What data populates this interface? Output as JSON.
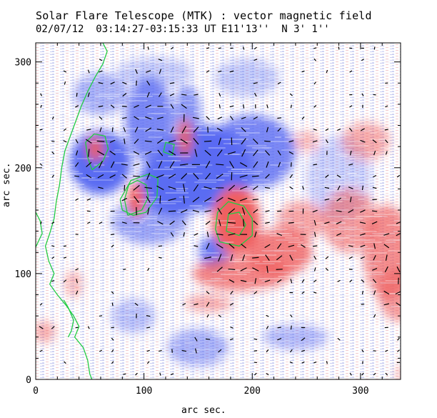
{
  "chart_data": {
    "type": "heatmap",
    "title": "Solar Flare Telescope (MTK) : vector magnetic field",
    "subtitle": {
      "date_time": "02/07/12  03:14:27-03:15:33 UT",
      "position": "E11'13''  N 3' 1''"
    },
    "xlabel": "arc sec.",
    "ylabel": "arc sec.",
    "xlim": [
      0,
      337
    ],
    "ylim": [
      0,
      318
    ],
    "xticks": [
      0,
      100,
      200,
      300
    ],
    "yticks": [
      0,
      100,
      200,
      300
    ],
    "colors": {
      "positive": "#f06060",
      "negative": "#5a6cf2",
      "contour": "#22cc44",
      "vectors": "#000000"
    },
    "series": [
      {
        "name": "negative polarity (blue)",
        "regions": [
          {
            "x": 60,
            "y": 205,
            "rx": 28,
            "ry": 30,
            "v": -1
          },
          {
            "x": 105,
            "y": 245,
            "rx": 22,
            "ry": 40,
            "v": -0.8
          },
          {
            "x": 140,
            "y": 250,
            "rx": 12,
            "ry": 28,
            "v": -0.7
          },
          {
            "x": 155,
            "y": 200,
            "rx": 45,
            "ry": 40,
            "v": -1
          },
          {
            "x": 130,
            "y": 185,
            "rx": 35,
            "ry": 30,
            "v": -1
          },
          {
            "x": 200,
            "y": 215,
            "rx": 40,
            "ry": 35,
            "v": -0.8
          },
          {
            "x": 105,
            "y": 150,
            "rx": 35,
            "ry": 22,
            "v": -0.6
          },
          {
            "x": 165,
            "y": 120,
            "rx": 14,
            "ry": 16,
            "v": -0.9
          },
          {
            "x": 110,
            "y": 290,
            "rx": 35,
            "ry": 14,
            "v": -0.35
          },
          {
            "x": 280,
            "y": 190,
            "rx": 30,
            "ry": 40,
            "v": -0.3
          },
          {
            "x": 240,
            "y": 40,
            "rx": 30,
            "ry": 12,
            "v": -0.45
          },
          {
            "x": 150,
            "y": 30,
            "rx": 28,
            "ry": 18,
            "v": -0.5
          },
          {
            "x": 90,
            "y": 60,
            "rx": 20,
            "ry": 16,
            "v": -0.4
          },
          {
            "x": 60,
            "y": 270,
            "rx": 25,
            "ry": 20,
            "v": -0.5
          },
          {
            "x": 195,
            "y": 285,
            "rx": 30,
            "ry": 18,
            "v": -0.35
          }
        ]
      },
      {
        "name": "positive polarity (red)",
        "regions": [
          {
            "x": 185,
            "y": 150,
            "rx": 22,
            "ry": 32,
            "v": 1
          },
          {
            "x": 225,
            "y": 120,
            "rx": 30,
            "ry": 22,
            "v": 0.8
          },
          {
            "x": 190,
            "y": 100,
            "rx": 45,
            "ry": 16,
            "v": 0.75
          },
          {
            "x": 245,
            "y": 150,
            "rx": 22,
            "ry": 18,
            "v": 0.55
          },
          {
            "x": 290,
            "y": 150,
            "rx": 25,
            "ry": 30,
            "v": 0.6
          },
          {
            "x": 305,
            "y": 225,
            "rx": 22,
            "ry": 18,
            "v": 0.5
          },
          {
            "x": 325,
            "y": 120,
            "rx": 22,
            "ry": 45,
            "v": 0.7
          },
          {
            "x": 335,
            "y": 80,
            "rx": 18,
            "ry": 25,
            "v": 0.6
          },
          {
            "x": 55,
            "y": 218,
            "rx": 8,
            "ry": 12,
            "v": 0.9
          },
          {
            "x": 93,
            "y": 170,
            "rx": 8,
            "ry": 16,
            "v": 0.95
          },
          {
            "x": 138,
            "y": 228,
            "rx": 7,
            "ry": 18,
            "v": 0.85
          },
          {
            "x": 160,
            "y": 72,
            "rx": 22,
            "ry": 8,
            "v": 0.5
          },
          {
            "x": 250,
            "y": 225,
            "rx": 12,
            "ry": 10,
            "v": 0.4
          },
          {
            "x": 8,
            "y": 45,
            "rx": 10,
            "ry": 10,
            "v": 0.5
          },
          {
            "x": 35,
            "y": 90,
            "rx": 8,
            "ry": 12,
            "v": 0.45
          },
          {
            "x": 340,
            "y": 5,
            "rx": 8,
            "ry": 8,
            "v": 0.4
          }
        ]
      },
      {
        "name": "contours (green)",
        "lines": [
          [
            [
              62,
              318
            ],
            [
              66,
              310
            ],
            [
              62,
              298
            ],
            [
              55,
              286
            ],
            [
              48,
              272
            ],
            [
              42,
              258
            ],
            [
              37,
              244
            ],
            [
              32,
              230
            ],
            [
              27,
              216
            ],
            [
              24,
              200
            ],
            [
              22,
              184
            ],
            [
              19,
              168
            ],
            [
              17,
              152
            ],
            [
              13,
              138
            ],
            [
              9,
              126
            ],
            [
              12,
              112
            ],
            [
              17,
              100
            ],
            [
              13,
              90
            ],
            [
              20,
              80
            ],
            [
              28,
              70
            ],
            [
              35,
              60
            ],
            [
              40,
              50
            ],
            [
              36,
              40
            ],
            [
              44,
              30
            ],
            [
              48,
              18
            ],
            [
              50,
              5
            ],
            [
              52,
              0
            ]
          ],
          [
            [
              52,
              198
            ],
            [
              62,
              206
            ],
            [
              67,
              218
            ],
            [
              64,
              230
            ],
            [
              54,
              232
            ],
            [
              46,
              224
            ],
            [
              48,
              210
            ],
            [
              52,
              198
            ]
          ],
          [
            [
              85,
              155
            ],
            [
              98,
              160
            ],
            [
              104,
              172
            ],
            [
              102,
              184
            ],
            [
              94,
              188
            ],
            [
              86,
              184
            ],
            [
              82,
              170
            ],
            [
              85,
              155
            ]
          ],
          [
            [
              78,
              170
            ],
            [
              88,
              188
            ],
            [
              104,
              194
            ],
            [
              113,
              190
            ],
            [
              112,
              172
            ],
            [
              102,
              158
            ],
            [
              90,
              155
            ],
            [
              80,
              160
            ],
            [
              78,
              170
            ]
          ],
          [
            [
              170,
              130
            ],
            [
              188,
              126
            ],
            [
              200,
              136
            ],
            [
              200,
              152
            ],
            [
              192,
              164
            ],
            [
              178,
              168
            ],
            [
              168,
              158
            ],
            [
              166,
              142
            ],
            [
              170,
              130
            ]
          ],
          [
            [
              176,
              140
            ],
            [
              188,
              136
            ],
            [
              194,
              146
            ],
            [
              188,
              158
            ],
            [
              178,
              156
            ],
            [
              176,
              140
            ]
          ],
          [
            [
              118,
              215
            ],
            [
              126,
              212
            ],
            [
              128,
              222
            ],
            [
              120,
              224
            ],
            [
              118,
              215
            ]
          ],
          [
            [
              0,
              125
            ],
            [
              6,
              138
            ],
            [
              4,
              150
            ],
            [
              0,
              158
            ]
          ],
          [
            [
              26,
              75
            ],
            [
              30,
              68
            ],
            [
              35,
              56
            ],
            [
              33,
              46
            ],
            [
              30,
              40
            ]
          ]
        ]
      },
      {
        "name": "transverse field vectors",
        "sample_angles_deg": [
          20,
          -15,
          45,
          70,
          -40,
          10,
          85,
          -60,
          30,
          5
        ]
      }
    ]
  }
}
